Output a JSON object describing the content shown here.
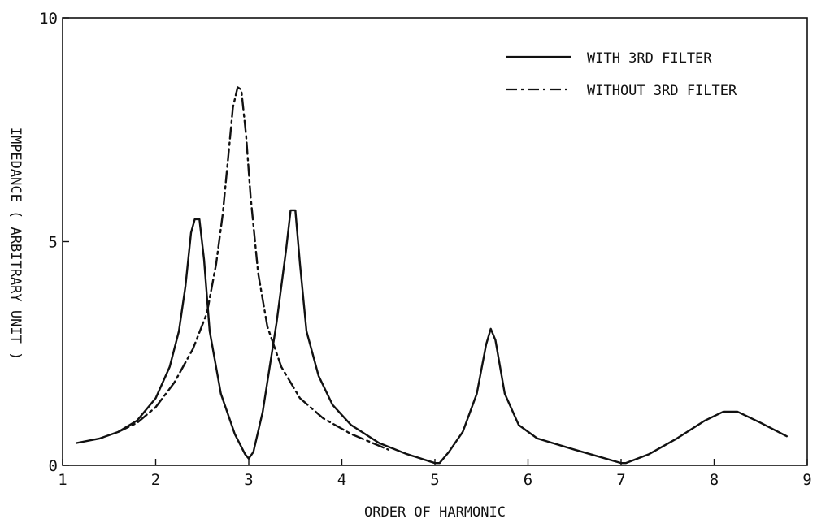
{
  "chart_data": {
    "type": "line",
    "title": "",
    "xlabel": "ORDER OF HARMONIC",
    "ylabel": "IMPEDANCE ( ARBITRARY UNIT )",
    "xlim": [
      1,
      9
    ],
    "ylim": [
      0,
      10
    ],
    "xticks": [
      "1",
      "2",
      "3",
      "4",
      "5",
      "6",
      "7",
      "8",
      "9"
    ],
    "yticks": [
      "0",
      "5",
      "10"
    ],
    "grid": false,
    "legend_position": "top-right",
    "series": [
      {
        "name": "WITH 3RD FILTER",
        "style": "solid",
        "color": "#111111",
        "points": [
          [
            1.15,
            0.5
          ],
          [
            1.4,
            0.6
          ],
          [
            1.6,
            0.75
          ],
          [
            1.8,
            1.0
          ],
          [
            2.0,
            1.5
          ],
          [
            2.15,
            2.2
          ],
          [
            2.25,
            3.0
          ],
          [
            2.32,
            4.0
          ],
          [
            2.38,
            5.2
          ],
          [
            2.42,
            5.5
          ],
          [
            2.47,
            5.5
          ],
          [
            2.52,
            4.6
          ],
          [
            2.58,
            3.0
          ],
          [
            2.7,
            1.6
          ],
          [
            2.85,
            0.7
          ],
          [
            2.96,
            0.25
          ],
          [
            3.0,
            0.15
          ],
          [
            3.05,
            0.3
          ],
          [
            3.15,
            1.2
          ],
          [
            3.3,
            3.2
          ],
          [
            3.4,
            4.8
          ],
          [
            3.45,
            5.7
          ],
          [
            3.5,
            5.7
          ],
          [
            3.55,
            4.5
          ],
          [
            3.62,
            3.0
          ],
          [
            3.75,
            2.0
          ],
          [
            3.9,
            1.35
          ],
          [
            4.1,
            0.9
          ],
          [
            4.4,
            0.5
          ],
          [
            4.7,
            0.25
          ],
          [
            5.0,
            0.05
          ],
          [
            5.05,
            0.05
          ],
          [
            5.15,
            0.3
          ],
          [
            5.3,
            0.75
          ],
          [
            5.45,
            1.6
          ],
          [
            5.55,
            2.7
          ],
          [
            5.6,
            3.05
          ],
          [
            5.65,
            2.8
          ],
          [
            5.75,
            1.6
          ],
          [
            5.9,
            0.9
          ],
          [
            6.1,
            0.6
          ],
          [
            6.5,
            0.35
          ],
          [
            7.0,
            0.05
          ],
          [
            7.05,
            0.05
          ],
          [
            7.3,
            0.25
          ],
          [
            7.6,
            0.6
          ],
          [
            7.9,
            1.0
          ],
          [
            8.1,
            1.2
          ],
          [
            8.25,
            1.2
          ],
          [
            8.5,
            0.95
          ],
          [
            8.78,
            0.65
          ]
        ]
      },
      {
        "name": "WITHOUT 3RD FILTER",
        "style": "dash-dot",
        "color": "#111111",
        "points": [
          [
            1.6,
            0.75
          ],
          [
            1.8,
            0.95
          ],
          [
            2.0,
            1.3
          ],
          [
            2.2,
            1.85
          ],
          [
            2.4,
            2.6
          ],
          [
            2.55,
            3.4
          ],
          [
            2.65,
            4.5
          ],
          [
            2.72,
            5.6
          ],
          [
            2.78,
            6.9
          ],
          [
            2.83,
            8.0
          ],
          [
            2.88,
            8.45
          ],
          [
            2.92,
            8.4
          ],
          [
            2.97,
            7.4
          ],
          [
            3.02,
            6.0
          ],
          [
            3.1,
            4.3
          ],
          [
            3.2,
            3.1
          ],
          [
            3.35,
            2.2
          ],
          [
            3.55,
            1.5
          ],
          [
            3.8,
            1.05
          ],
          [
            4.1,
            0.7
          ],
          [
            4.5,
            0.35
          ]
        ]
      }
    ]
  }
}
